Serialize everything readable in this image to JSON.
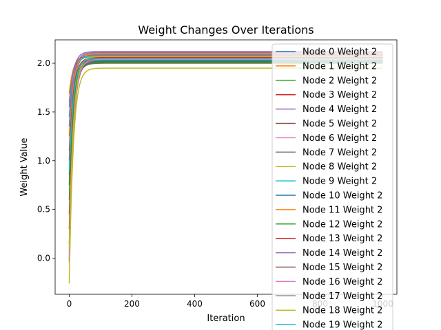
{
  "chart_data": {
    "type": "line",
    "title": "Weight Changes Over Iterations",
    "xlabel": "Iteration",
    "ylabel": "Weight Value",
    "xlim": [
      -45,
      1045
    ],
    "ylim": [
      -0.37,
      2.24
    ],
    "xticks": [
      0,
      200,
      400,
      600,
      800,
      1000
    ],
    "xtick_labels": [
      "0",
      "200",
      "400",
      "600",
      "800",
      "1000"
    ],
    "yticks": [
      0.0,
      0.5,
      1.0,
      1.5,
      2.0
    ],
    "ytick_labels": [
      "0.0",
      "0.5",
      "1.0",
      "1.5",
      "2.0"
    ],
    "grid": false,
    "legend_position": "upper-right",
    "x_max": 1000,
    "series": [
      {
        "name": "Node 0 Weight 2",
        "color": "#1f77b4",
        "start": -0.02,
        "final": 2.06
      },
      {
        "name": "Node 1 Weight 2",
        "color": "#ff7f0e",
        "start": 1.69,
        "final": 2.08
      },
      {
        "name": "Node 2 Weight 2",
        "color": "#2ca02c",
        "start": 0.6,
        "final": 2.0
      },
      {
        "name": "Node 3 Weight 2",
        "color": "#d62728",
        "start": 0.3,
        "final": 2.05
      },
      {
        "name": "Node 4 Weight 2",
        "color": "#9467bd",
        "start": 1.55,
        "final": 2.12
      },
      {
        "name": "Node 5 Weight 2",
        "color": "#8c564b",
        "start": 0.85,
        "final": 2.04
      },
      {
        "name": "Node 6 Weight 2",
        "color": "#e377c2",
        "start": -0.05,
        "final": 2.03
      },
      {
        "name": "Node 7 Weight 2",
        "color": "#7f7f7f",
        "start": 1.1,
        "final": 2.09
      },
      {
        "name": "Node 8 Weight 2",
        "color": "#bcbd22",
        "start": -0.26,
        "final": 1.95
      },
      {
        "name": "Node 9 Weight 2",
        "color": "#17becf",
        "start": 1.45,
        "final": 2.07
      },
      {
        "name": "Node 10 Weight 2",
        "color": "#1f77b4",
        "start": 0.15,
        "final": 2.02
      },
      {
        "name": "Node 11 Weight 2",
        "color": "#ff7f0e",
        "start": 1.25,
        "final": 2.1
      },
      {
        "name": "Node 12 Weight 2",
        "color": "#2ca02c",
        "start": 0.75,
        "final": 2.03
      },
      {
        "name": "Node 13 Weight 2",
        "color": "#d62728",
        "start": 1.0,
        "final": 2.06
      },
      {
        "name": "Node 14 Weight 2",
        "color": "#9467bd",
        "start": 1.35,
        "final": 2.11
      },
      {
        "name": "Node 15 Weight 2",
        "color": "#8c564b",
        "start": 0.45,
        "final": 2.01
      },
      {
        "name": "Node 16 Weight 2",
        "color": "#e377c2",
        "start": 0.05,
        "final": 2.04
      },
      {
        "name": "Node 17 Weight 2",
        "color": "#7f7f7f",
        "start": 1.6,
        "final": 2.08
      },
      {
        "name": "Node 18 Weight 2",
        "color": "#bcbd22",
        "start": 0.1,
        "final": 2.07
      },
      {
        "name": "Node 19 Weight 2",
        "color": "#17becf",
        "start": 0.9,
        "final": 2.05
      }
    ]
  }
}
